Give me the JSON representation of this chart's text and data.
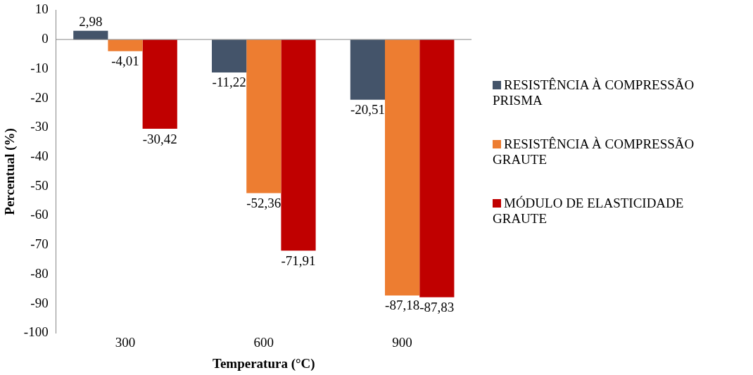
{
  "chart_data": {
    "type": "bar",
    "xlabel": "Temperatura (°C)",
    "ylabel": "Percentual (%)",
    "categories": [
      "300",
      "600",
      "900"
    ],
    "series": [
      {
        "name": "RESISTÊNCIA À COMPRESSÃO PRISMA",
        "color": "#44546a",
        "values": [
          2.98,
          -11.22,
          -20.51
        ],
        "value_labels": [
          "2,98",
          "-11,22",
          "-20,51"
        ]
      },
      {
        "name": "RESISTÊNCIA À COMPRESSÃO GRAUTE",
        "color": "#ed7d31",
        "values": [
          -4.01,
          -52.36,
          -87.18
        ],
        "value_labels": [
          "-4,01",
          "-52,36",
          "-87,18"
        ]
      },
      {
        "name": "MÓDULO DE ELASTICIDADE GRAUTE",
        "color": "#c00000",
        "values": [
          -30.42,
          -71.91,
          -87.83
        ],
        "value_labels": [
          "-30,42",
          "-71,91",
          "-87,83"
        ]
      }
    ],
    "ylim": [
      -100,
      10
    ],
    "yticks": [
      -100,
      -90,
      -80,
      -70,
      -60,
      -50,
      -40,
      -30,
      -20,
      -10,
      0,
      10
    ],
    "ref_lines": [
      {
        "axis": "y",
        "value": 0,
        "color": "#868686"
      }
    ],
    "grid": false,
    "legend": "right"
  }
}
